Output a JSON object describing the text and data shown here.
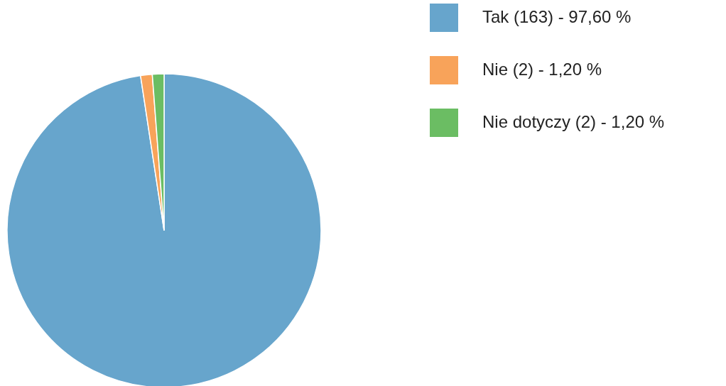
{
  "chart_data": {
    "type": "pie",
    "categories": [
      "Tak (163) - 97,60 %",
      "Nie (2) - 1,20 %",
      "Nie dotyczy (2) - 1,20 %"
    ],
    "values": [
      97.6,
      1.2,
      1.2
    ],
    "colors": [
      "#67a5cc",
      "#f8a35a",
      "#6bbd63"
    ],
    "legend": "top right"
  }
}
